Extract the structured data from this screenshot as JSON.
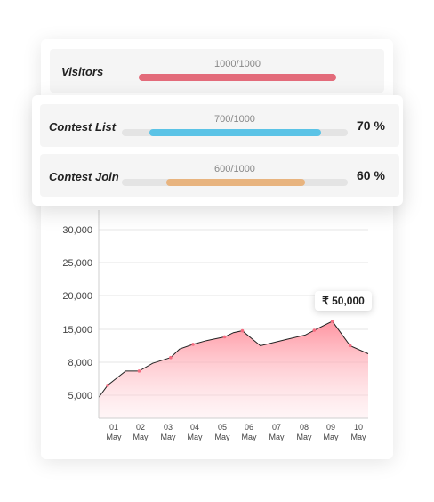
{
  "stats": [
    {
      "label": "Visitors",
      "count": "1000/1000",
      "progress": 1.0,
      "color": "#e36b7a",
      "percent": ""
    },
    {
      "label": "Contest List",
      "count": "700/1000",
      "progress": 0.7,
      "color": "#5bc3e6",
      "percent": "70 %"
    },
    {
      "label": "Contest Join",
      "count": "600/1000",
      "progress": 0.6,
      "color": "#e8b47f",
      "percent": "60 %"
    }
  ],
  "tooltip": {
    "value": "₹ 50,000"
  },
  "chart_data": {
    "type": "area",
    "x": [
      "01 May",
      "02 May",
      "03 May",
      "04 May",
      "05 May",
      "06 May",
      "07 May",
      "08 May",
      "09 May",
      "10 May"
    ],
    "y_ticks": [
      "5,000",
      "8,000",
      "15,000",
      "20,000",
      "25,000",
      "30,000"
    ],
    "points": [
      {
        "x": 0.0,
        "y": 4800
      },
      {
        "x": 0.33,
        "y": 5900
      },
      {
        "x": 1.0,
        "y": 7200
      },
      {
        "x": 1.5,
        "y": 7200
      },
      {
        "x": 2.0,
        "y": 7900
      },
      {
        "x": 2.67,
        "y": 9000
      },
      {
        "x": 3.0,
        "y": 10800
      },
      {
        "x": 3.5,
        "y": 11800
      },
      {
        "x": 4.0,
        "y": 12600
      },
      {
        "x": 4.67,
        "y": 13400
      },
      {
        "x": 5.0,
        "y": 14300
      },
      {
        "x": 5.33,
        "y": 14700
      },
      {
        "x": 6.0,
        "y": 11500
      },
      {
        "x": 7.0,
        "y": 12900
      },
      {
        "x": 7.67,
        "y": 13800
      },
      {
        "x": 8.0,
        "y": 14800
      },
      {
        "x": 8.67,
        "y": 16200
      },
      {
        "x": 9.33,
        "y": 11500
      },
      {
        "x": 10.0,
        "y": 9800
      }
    ],
    "marker_points": [
      1,
      3,
      5,
      7,
      9,
      11,
      15,
      16,
      17
    ],
    "line_color": "#222222",
    "fill_color": "#ff8f9c",
    "grid": true
  }
}
